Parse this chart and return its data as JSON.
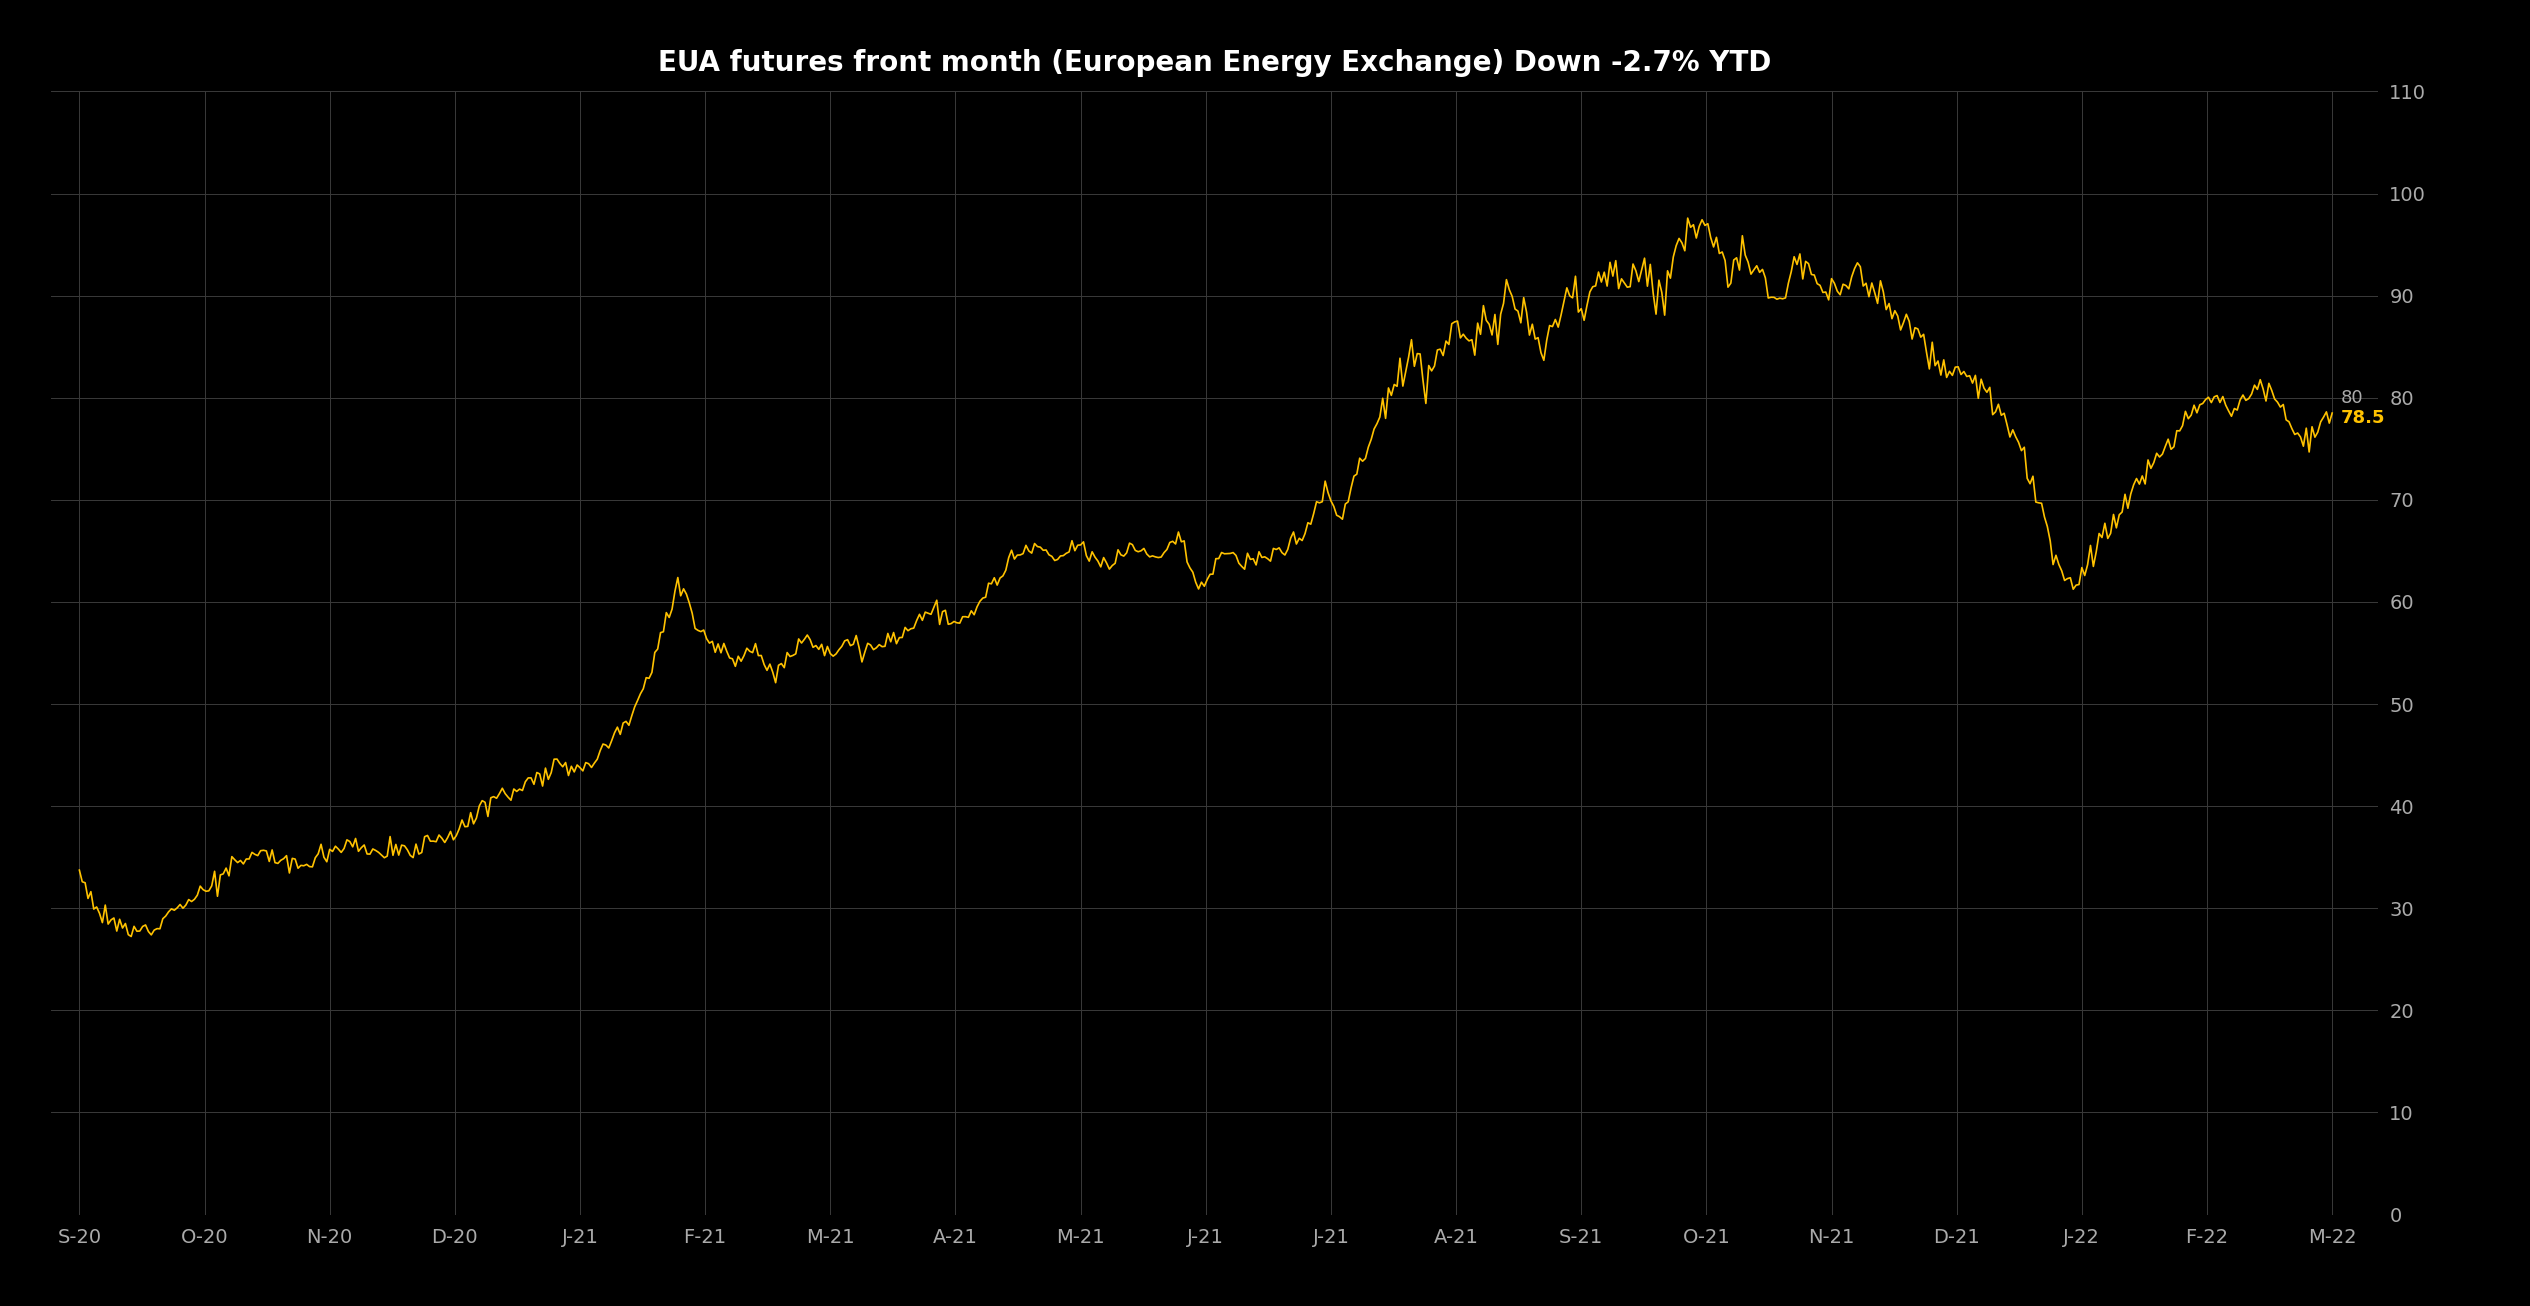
{
  "title": "EUA futures front month (European Energy Exchange) Down -2.7% YTD",
  "background_color": "#000000",
  "line_color": "#FFC200",
  "label_color": "#AAAAAA",
  "title_color": "#FFFFFF",
  "grid_color": "#3A3A3A",
  "ylim": [
    0,
    110
  ],
  "last_value": 78.5,
  "last_label_color": "#FFC200",
  "x_labels": [
    "S-20",
    "O-20",
    "N-20",
    "D-20",
    "J-21",
    "F-21",
    "M-21",
    "A-21",
    "M-21",
    "J-21",
    "J-21",
    "A-21",
    "S-21",
    "O-21",
    "N-21",
    "D-21",
    "J-22",
    "F-22",
    "M-22"
  ],
  "waypoints": [
    [
      0,
      33.5
    ],
    [
      8,
      29.0
    ],
    [
      20,
      27.5
    ],
    [
      30,
      29.5
    ],
    [
      45,
      32.0
    ],
    [
      55,
      34.5
    ],
    [
      65,
      35.5
    ],
    [
      75,
      34.0
    ],
    [
      85,
      35.5
    ],
    [
      95,
      36.5
    ],
    [
      105,
      35.5
    ],
    [
      115,
      35.5
    ],
    [
      125,
      37.0
    ],
    [
      135,
      38.0
    ],
    [
      140,
      40.0
    ],
    [
      150,
      41.5
    ],
    [
      160,
      43.0
    ],
    [
      167,
      44.5
    ],
    [
      172,
      43.5
    ],
    [
      178,
      44.5
    ],
    [
      183,
      46.0
    ],
    [
      188,
      47.5
    ],
    [
      193,
      50.0
    ],
    [
      198,
      53.0
    ],
    [
      203,
      57.5
    ],
    [
      208,
      61.5
    ],
    [
      213,
      59.0
    ],
    [
      218,
      56.5
    ],
    [
      223,
      55.5
    ],
    [
      228,
      54.5
    ],
    [
      233,
      55.0
    ],
    [
      238,
      54.0
    ],
    [
      243,
      53.5
    ],
    [
      248,
      55.0
    ],
    [
      253,
      57.0
    ],
    [
      258,
      55.5
    ],
    [
      263,
      55.0
    ],
    [
      268,
      56.5
    ],
    [
      273,
      55.0
    ],
    [
      278,
      55.5
    ],
    [
      283,
      56.5
    ],
    [
      288,
      57.5
    ],
    [
      293,
      58.5
    ],
    [
      298,
      59.5
    ],
    [
      303,
      57.5
    ],
    [
      308,
      58.0
    ],
    [
      313,
      60.0
    ],
    [
      318,
      62.0
    ],
    [
      323,
      63.5
    ],
    [
      328,
      65.0
    ],
    [
      333,
      65.5
    ],
    [
      338,
      64.0
    ],
    [
      343,
      64.5
    ],
    [
      348,
      65.5
    ],
    [
      353,
      64.0
    ],
    [
      358,
      63.5
    ],
    [
      363,
      65.0
    ],
    [
      368,
      65.5
    ],
    [
      373,
      64.5
    ],
    [
      378,
      65.5
    ],
    [
      383,
      66.5
    ],
    [
      388,
      61.5
    ],
    [
      393,
      62.5
    ],
    [
      398,
      65.0
    ],
    [
      403,
      64.0
    ],
    [
      408,
      63.5
    ],
    [
      413,
      64.5
    ],
    [
      418,
      65.5
    ],
    [
      423,
      66.0
    ],
    [
      428,
      68.0
    ],
    [
      433,
      71.0
    ],
    [
      438,
      68.0
    ],
    [
      443,
      72.0
    ],
    [
      448,
      75.0
    ],
    [
      453,
      79.0
    ],
    [
      458,
      82.0
    ],
    [
      463,
      85.0
    ],
    [
      468,
      82.0
    ],
    [
      473,
      84.0
    ],
    [
      478,
      87.5
    ],
    [
      483,
      85.0
    ],
    [
      488,
      88.0
    ],
    [
      493,
      86.0
    ],
    [
      498,
      90.0
    ],
    [
      503,
      88.0
    ],
    [
      508,
      84.0
    ],
    [
      513,
      87.5
    ],
    [
      518,
      90.5
    ],
    [
      523,
      88.5
    ],
    [
      528,
      91.0
    ],
    [
      533,
      92.5
    ],
    [
      538,
      90.5
    ],
    [
      543,
      93.0
    ],
    [
      548,
      90.0
    ],
    [
      553,
      93.0
    ],
    [
      558,
      96.0
    ],
    [
      563,
      97.5
    ],
    [
      568,
      96.5
    ],
    [
      573,
      91.0
    ],
    [
      578,
      94.0
    ],
    [
      583,
      92.5
    ],
    [
      588,
      90.0
    ],
    [
      593,
      90.5
    ],
    [
      598,
      94.5
    ],
    [
      603,
      92.0
    ],
    [
      608,
      91.0
    ],
    [
      613,
      90.0
    ],
    [
      618,
      93.0
    ],
    [
      623,
      91.0
    ],
    [
      628,
      89.0
    ],
    [
      633,
      87.0
    ],
    [
      638,
      86.5
    ],
    [
      643,
      84.5
    ],
    [
      648,
      83.0
    ],
    [
      653,
      81.5
    ],
    [
      658,
      82.0
    ],
    [
      663,
      80.5
    ],
    [
      668,
      78.5
    ],
    [
      673,
      76.0
    ],
    [
      678,
      72.0
    ],
    [
      683,
      68.0
    ],
    [
      688,
      63.0
    ],
    [
      693,
      61.5
    ],
    [
      698,
      64.0
    ],
    [
      703,
      66.5
    ],
    [
      708,
      68.0
    ],
    [
      713,
      70.5
    ],
    [
      718,
      72.0
    ],
    [
      723,
      74.0
    ],
    [
      728,
      76.0
    ],
    [
      733,
      78.0
    ],
    [
      738,
      79.5
    ],
    [
      743,
      80.5
    ],
    [
      748,
      79.0
    ],
    [
      753,
      80.0
    ],
    [
      758,
      81.5
    ],
    [
      763,
      80.0
    ],
    [
      768,
      77.5
    ],
    [
      773,
      75.5
    ],
    [
      778,
      77.0
    ],
    [
      783,
      78.5
    ]
  ]
}
